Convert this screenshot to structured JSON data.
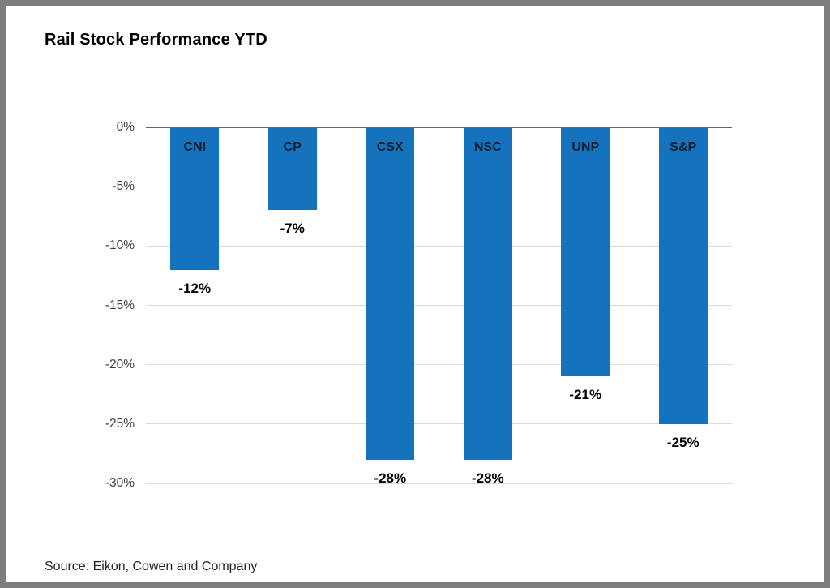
{
  "title": "Rail Stock Performance YTD",
  "source_note": "Source: Eikon, Cowen and Company",
  "chart_data": {
    "type": "bar",
    "title": "Rail Stock Performance YTD",
    "categories": [
      "CNI",
      "CP",
      "CSX",
      "NSC",
      "UNP",
      "S&P"
    ],
    "values": [
      -12,
      -7,
      -28,
      -28,
      -21,
      -25
    ],
    "value_labels": [
      "-12%",
      "-7%",
      "-28%",
      "-28%",
      "-21%",
      "-25%"
    ],
    "xlabel": "",
    "ylabel": "",
    "ylim": [
      -30,
      0
    ],
    "y_ticks": [
      0,
      -5,
      -10,
      -15,
      -20,
      -25,
      -30
    ],
    "y_tick_labels": [
      "0%",
      "-5%",
      "-10%",
      "-15%",
      "-20%",
      "-25%",
      "-30%"
    ],
    "grid": true,
    "legend": false,
    "bar_color": "#1573bd",
    "grid_color": "#d9d9d9",
    "zero_line_color": "#666666",
    "tick_label_color": "#404040"
  }
}
